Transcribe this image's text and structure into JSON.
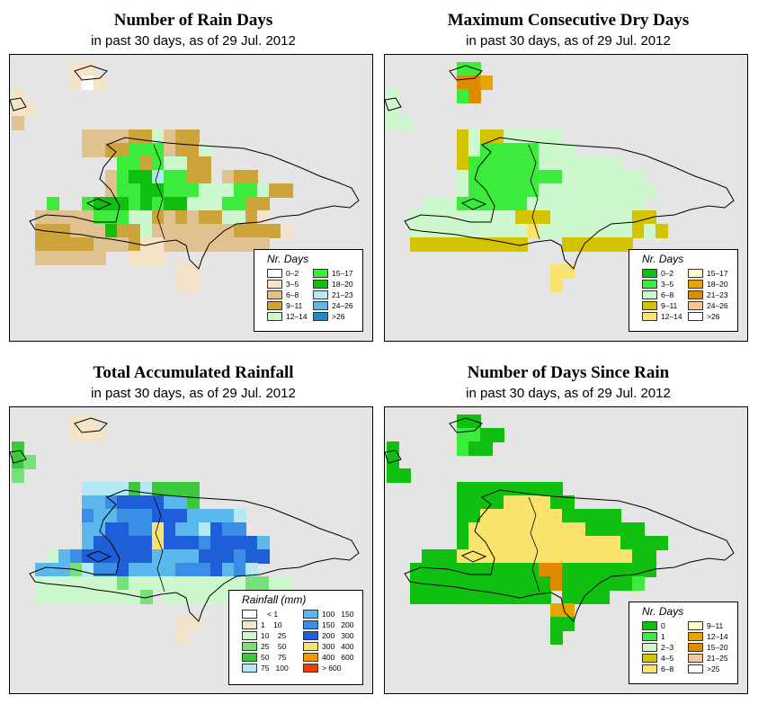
{
  "panels": [
    {
      "id": "rain-days",
      "title": "Number of Rain Days",
      "subtitle": "in past 30 days, as of  29 Jul. 2012",
      "legend_title": "Nr. Days",
      "legend": [
        {
          "label": "0–2",
          "color": "#ffffff"
        },
        {
          "label": "3–5",
          "color": "#f5e4c8"
        },
        {
          "label": "6–8",
          "color": "#e0c290"
        },
        {
          "label": "9–11",
          "color": "#cca43a"
        },
        {
          "label": "12–14",
          "color": "#cdf7cd"
        },
        {
          "label": "15–17",
          "color": "#3cec3c"
        },
        {
          "label": "18–20",
          "color": "#10c010"
        },
        {
          "label": "21–23",
          "color": "#b4e8f4"
        },
        {
          "label": "24–26",
          "color": "#5ab8ec"
        },
        {
          "label": ">26",
          "color": "#1a8ccc"
        }
      ]
    },
    {
      "id": "dry-days",
      "title": "Maximum Consecutive Dry Days",
      "subtitle": "in past 30 days, as of  29 Jul. 2012",
      "legend_title": "Nr. Days",
      "legend": [
        {
          "label": "0–2",
          "color": "#10c010"
        },
        {
          "label": "3–5",
          "color": "#3cec3c"
        },
        {
          "label": "6–8",
          "color": "#cdf7cd"
        },
        {
          "label": "9–11",
          "color": "#d4c400"
        },
        {
          "label": "12–14",
          "color": "#fae46e"
        },
        {
          "label": "15–17",
          "color": "#fffcc8"
        },
        {
          "label": "18–20",
          "color": "#e8a400"
        },
        {
          "label": "21–23",
          "color": "#e08a00"
        },
        {
          "label": "24–26",
          "color": "#f8c49a"
        },
        {
          "label": ">26",
          "color": "#ffffff"
        }
      ]
    },
    {
      "id": "rainfall",
      "title": "Total Accumulated Rainfall",
      "subtitle": "in past 30 days, as of  29 Jul. 2012",
      "legend_title": "Rainfall (mm)",
      "legend": [
        {
          "label": "   < 1",
          "color": "#ffffff"
        },
        {
          "label": "1    10",
          "color": "#f5e4c8"
        },
        {
          "label": "10    25",
          "color": "#cdf7cd"
        },
        {
          "label": "25    50",
          "color": "#78e078"
        },
        {
          "label": "50    75",
          "color": "#3cc83c"
        },
        {
          "label": "75   100",
          "color": "#b4e8f4"
        },
        {
          "label": "100   150",
          "color": "#5ab8ec"
        },
        {
          "label": "150   200",
          "color": "#3a8ee6"
        },
        {
          "label": "200   300",
          "color": "#1e5ed8"
        },
        {
          "label": "300   400",
          "color": "#fae46e"
        },
        {
          "label": "400   600",
          "color": "#f29a00"
        },
        {
          "label": "> 600",
          "color": "#f03c00"
        }
      ]
    },
    {
      "id": "since-rain",
      "title": "Number of Days Since Rain",
      "subtitle": "in past 30 days, as of  29 Jul. 2012",
      "legend_title": "Nr. Days",
      "legend": [
        {
          "label": "0",
          "color": "#10c010"
        },
        {
          "label": "1",
          "color": "#3cec3c"
        },
        {
          "label": "2–3",
          "color": "#cdf7cd"
        },
        {
          "label": "4–5",
          "color": "#d4c400"
        },
        {
          "label": "6–8",
          "color": "#fae46e"
        },
        {
          "label": "9–11",
          "color": "#fffcc8"
        },
        {
          "label": "12–14",
          "color": "#e8a400"
        },
        {
          "label": "15–20",
          "color": "#e08a00"
        },
        {
          "label": "21–25",
          "color": "#f8c49a"
        },
        {
          "label": ">25",
          "color": "#ffffff"
        }
      ]
    }
  ]
}
